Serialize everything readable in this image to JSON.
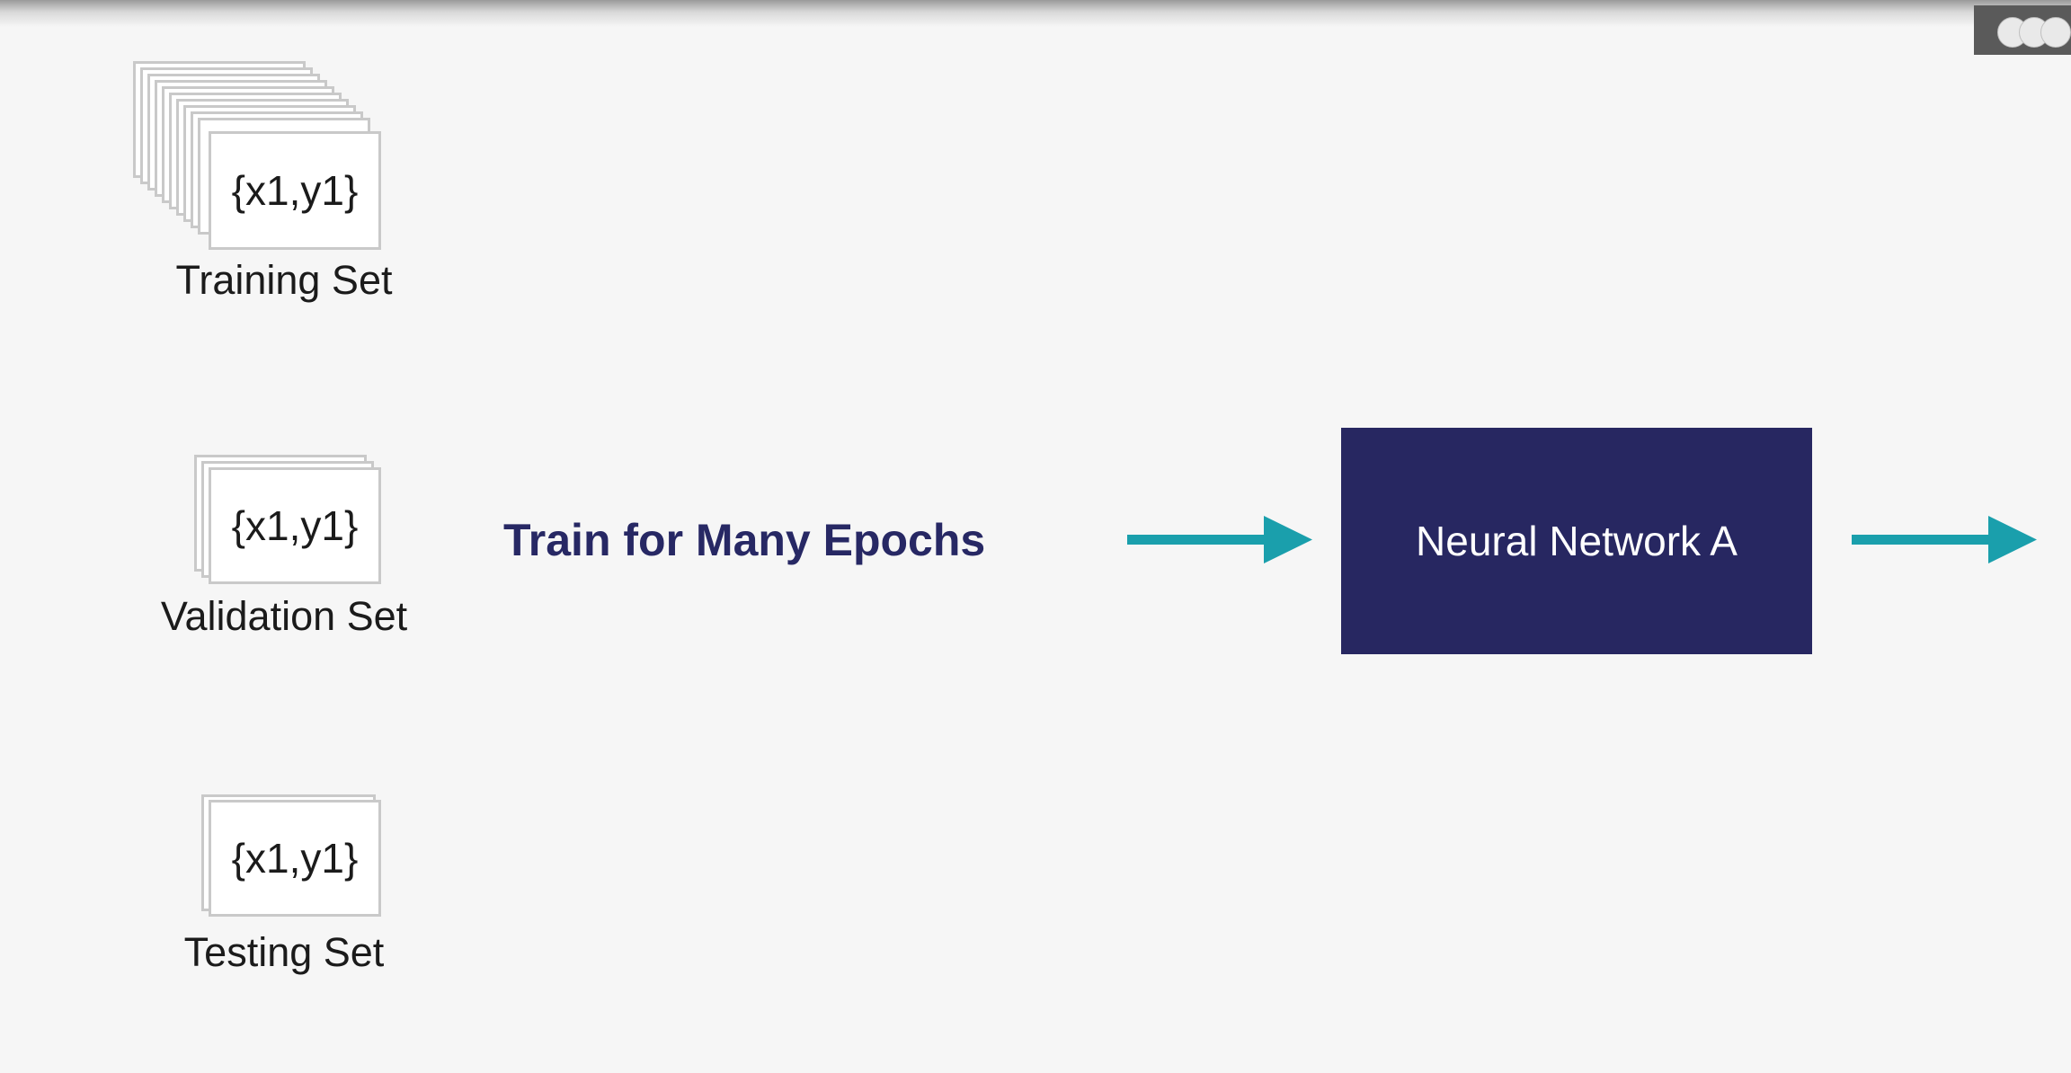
{
  "datasets": {
    "training": {
      "card_text": "{x1,y1}",
      "label": "Training Set"
    },
    "validation": {
      "card_text": "{x1,y1}",
      "label": "Validation Set"
    },
    "testing": {
      "card_text": "{x1,y1}",
      "label": "Testing Set"
    }
  },
  "process": {
    "label": "Train for Many Epochs"
  },
  "model": {
    "label": "Neural Network A"
  },
  "colors": {
    "background": "#f6f6f6",
    "model_box": "#272761",
    "process_text": "#272864",
    "arrow": "#1a9fac",
    "card_border": "#c9c9c9"
  }
}
